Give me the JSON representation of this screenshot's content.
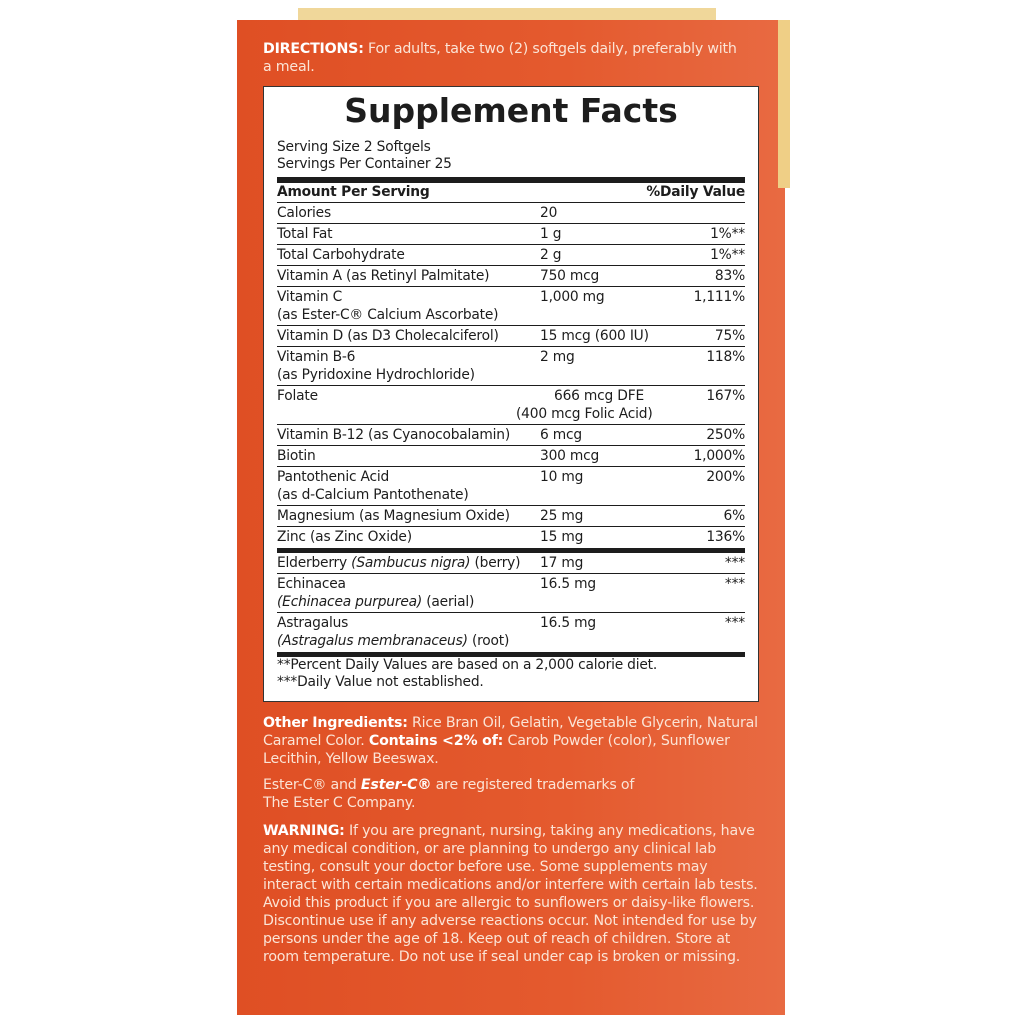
{
  "directions": {
    "label": "DIRECTIONS:",
    "text": "For adults, take two (2) softgels daily, preferably with a meal."
  },
  "facts": {
    "title": "Supplement Facts",
    "serving_size": "Serving Size 2 Softgels",
    "servings_per_container": "Servings Per Container 25",
    "header_left": "Amount Per Serving",
    "header_right": "%Daily Value",
    "rows": [
      {
        "name": "Calories",
        "amount": "20",
        "dv": ""
      },
      {
        "name": "Total Fat",
        "amount": "1 g",
        "dv": "1%**"
      },
      {
        "name": "Total Carbohydrate",
        "amount": "2 g",
        "dv": "1%**"
      },
      {
        "name": "Vitamin A (as Retinyl Palmitate)",
        "amount": "750 mcg",
        "dv": "83%"
      },
      {
        "name": "Vitamin C",
        "sub": "(as Ester-C® Calcium Ascorbate)",
        "amount": "1,000 mg",
        "dv": "1,111%"
      },
      {
        "name": "Vitamin D (as D3 Cholecalciferol)",
        "amount": "15 mcg (600 IU)",
        "dv": "75%"
      },
      {
        "name": "Vitamin B-6",
        "sub": "(as Pyridoxine Hydrochloride)",
        "amount": "2 mg",
        "dv": "118%"
      },
      {
        "name": "Folate",
        "amount": "666 mcg DFE",
        "amount_sub": "(400 mcg Folic Acid)",
        "dv": "167%"
      },
      {
        "name": "Vitamin B-12 (as Cyanocobalamin)",
        "amount": "6 mcg",
        "dv": "250%"
      },
      {
        "name": "Biotin",
        "amount": "300 mcg",
        "dv": "1,000%"
      },
      {
        "name": "Pantothenic Acid",
        "sub": "(as d-Calcium Pantothenate)",
        "amount": "10 mg",
        "dv": "200%"
      },
      {
        "name": "Magnesium (as Magnesium Oxide)",
        "amount": "25 mg",
        "dv": "6%"
      },
      {
        "name": "Zinc (as Zinc Oxide)",
        "amount": "15 mg",
        "dv": "136%"
      }
    ],
    "botanicals": [
      {
        "name": "Elderberry",
        "latin": "(Sambucus nigra)",
        "part": "(berry)",
        "amount": "17 mg",
        "dv": "***"
      },
      {
        "name": "Echinacea",
        "latin": "(Echinacea purpurea)",
        "part": "(aerial)",
        "amount": "16.5 mg",
        "dv": "***"
      },
      {
        "name": "Astragalus",
        "latin": "(Astragalus membranaceus)",
        "part": "(root)",
        "amount": "16.5 mg",
        "dv": "***"
      }
    ],
    "footnote1": "**Percent Daily Values are based on a 2,000 calorie diet.",
    "footnote2": "***Daily Value not established."
  },
  "other_ingredients": {
    "label": "Other Ingredients:",
    "text": "Rice Bran Oil, Gelatin, Vegetable Glycerin, Natural Caramel Color.",
    "contains_label": "Contains <2% of:",
    "contains_text": "Carob Powder (color), Sunflower Lecithin, Yellow Beeswax."
  },
  "trademark": {
    "prefix": "Ester-C® and",
    "logo": "Ester-C®",
    "text": "are registered trademarks of The Ester C Company."
  },
  "warning": {
    "label": "WARNING:",
    "text": "If you are pregnant, nursing, taking any medications, have any medical condition, or are planning to undergo any clinical lab testing, consult your doctor before use. Some supplements may interact with certain medications and/or interfere with certain lab tests. Avoid this product if you are allergic to sunflowers or daisy-like flowers. Discontinue use if any adverse reactions occur. Not intended for use by persons under the age of 18. Keep out of reach of children. Store at room temperature. Do not use if seal under cap is broken or missing."
  },
  "colors": {
    "panel": "#e0522a",
    "text": "#fbe4d6",
    "flap": "#f0d79a"
  }
}
